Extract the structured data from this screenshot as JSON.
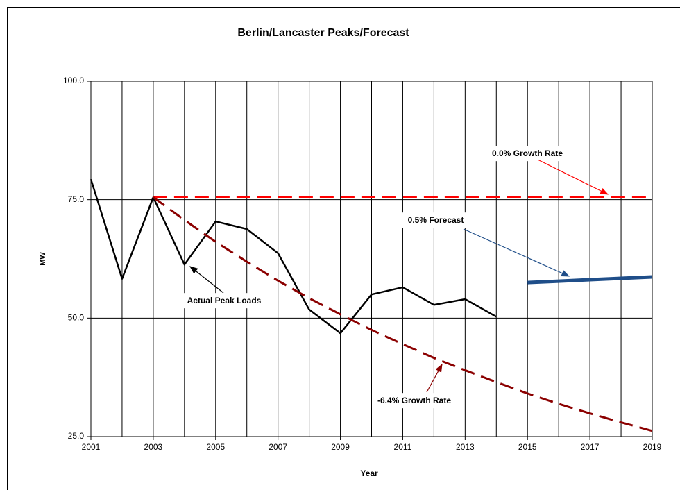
{
  "chart_data": {
    "type": "line",
    "title": "Berlin/Lancaster Peaks/Forecast",
    "xlabel": "Year",
    "ylabel": "MW",
    "x": [
      2001,
      2002,
      2003,
      2004,
      2005,
      2006,
      2007,
      2008,
      2009,
      2010,
      2011,
      2012,
      2013,
      2014,
      2015,
      2016,
      2017,
      2018,
      2019
    ],
    "xlim": [
      2001,
      2019
    ],
    "xticks": [
      2001,
      2003,
      2005,
      2007,
      2009,
      2011,
      2013,
      2015,
      2017,
      2019
    ],
    "ylim": [
      25,
      100
    ],
    "yticks": [
      {
        "value": 25,
        "label": "25.0"
      },
      {
        "value": 50,
        "label": "50.0"
      },
      {
        "value": 75,
        "label": "75.0"
      },
      {
        "value": 100,
        "label": "100.0"
      }
    ],
    "grid": true,
    "series": [
      {
        "color": "#000000",
        "dashed": false,
        "width": 2.5,
        "values": [
          79.3,
          58.3,
          75.5,
          61.3,
          70.4,
          68.8,
          63.7,
          51.8,
          46.8,
          55.0,
          56.5,
          52.8,
          54.0,
          50.3,
          null,
          null,
          null,
          null,
          null
        ]
      },
      {
        "color": "#ff0000",
        "dashed": true,
        "width": 3,
        "values": [
          null,
          null,
          75.5,
          75.5,
          75.5,
          75.5,
          75.5,
          75.5,
          75.5,
          75.5,
          75.5,
          75.5,
          75.5,
          75.5,
          75.5,
          75.5,
          75.5,
          75.5,
          75.5
        ]
      },
      {
        "color": "#8b0000",
        "dashed": true,
        "width": 3,
        "values": [
          null,
          null,
          75.5,
          70.7,
          66.1,
          61.9,
          57.9,
          54.2,
          50.8,
          47.5,
          44.5,
          41.6,
          39.0,
          36.5,
          34.1,
          31.9,
          29.9,
          28.0,
          26.2
        ]
      },
      {
        "color": "#1f4e89",
        "dashed": false,
        "width": 5,
        "values": [
          null,
          null,
          null,
          null,
          null,
          null,
          null,
          null,
          null,
          null,
          null,
          null,
          null,
          null,
          57.5,
          57.8,
          58.1,
          58.4,
          58.7
        ]
      }
    ],
    "annotations": [
      {
        "text": "0.0% Growth Rate",
        "color": "#ff0000"
      },
      {
        "text": "0.5% Forecast",
        "color": "#1f4e89"
      },
      {
        "text": "Actual Peak Loads",
        "color": "#000000"
      },
      {
        "text": "-6.4% Growth Rate",
        "color": "#8b0000"
      }
    ]
  }
}
